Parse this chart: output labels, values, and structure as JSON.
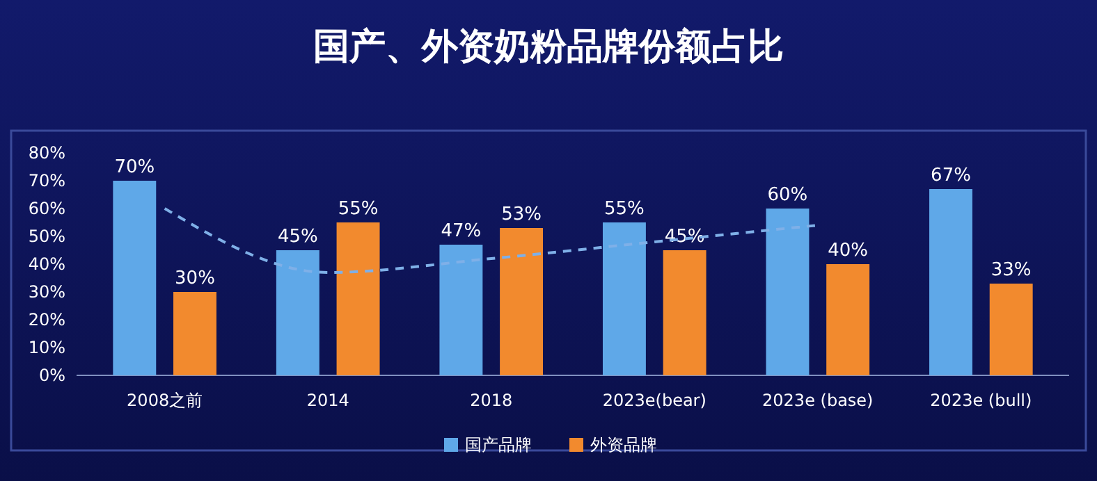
{
  "chart_data": {
    "type": "bar",
    "title": "国产、外资奶粉品牌份额占比",
    "categories": [
      "2008之前",
      "2014",
      "2018",
      "2023e(bear)",
      "2023e (base)",
      "2023e (bull)"
    ],
    "series": [
      {
        "name": "国产品牌",
        "color": "#5fa8e8",
        "values": [
          70,
          45,
          47,
          55,
          60,
          67
        ],
        "value_labels": [
          "70%",
          "45%",
          "47%",
          "55%",
          "60%",
          "67%"
        ]
      },
      {
        "name": "外资品牌",
        "color": "#f28a2e",
        "values": [
          30,
          55,
          53,
          45,
          40,
          33
        ],
        "value_labels": [
          "30%",
          "55%",
          "53%",
          "45%",
          "40%",
          "33%"
        ]
      },
      {
        "type": "line",
        "color": "#7fb0e8",
        "line_style": "dashed",
        "values": [
          60,
          37,
          42,
          48,
          54,
          null
        ]
      }
    ],
    "ylim": [
      0,
      80
    ],
    "yticks": [
      {
        "value": 0,
        "label": "0%"
      },
      {
        "value": 10,
        "label": "10%"
      },
      {
        "value": 20,
        "label": "20%"
      },
      {
        "value": 30,
        "label": "30%"
      },
      {
        "value": 40,
        "label": "40%"
      },
      {
        "value": 50,
        "label": "50%"
      },
      {
        "value": 60,
        "label": "60%"
      },
      {
        "value": 70,
        "label": "70%"
      },
      {
        "value": 80,
        "label": "80%"
      }
    ],
    "grid": false,
    "legend": "bottom"
  }
}
